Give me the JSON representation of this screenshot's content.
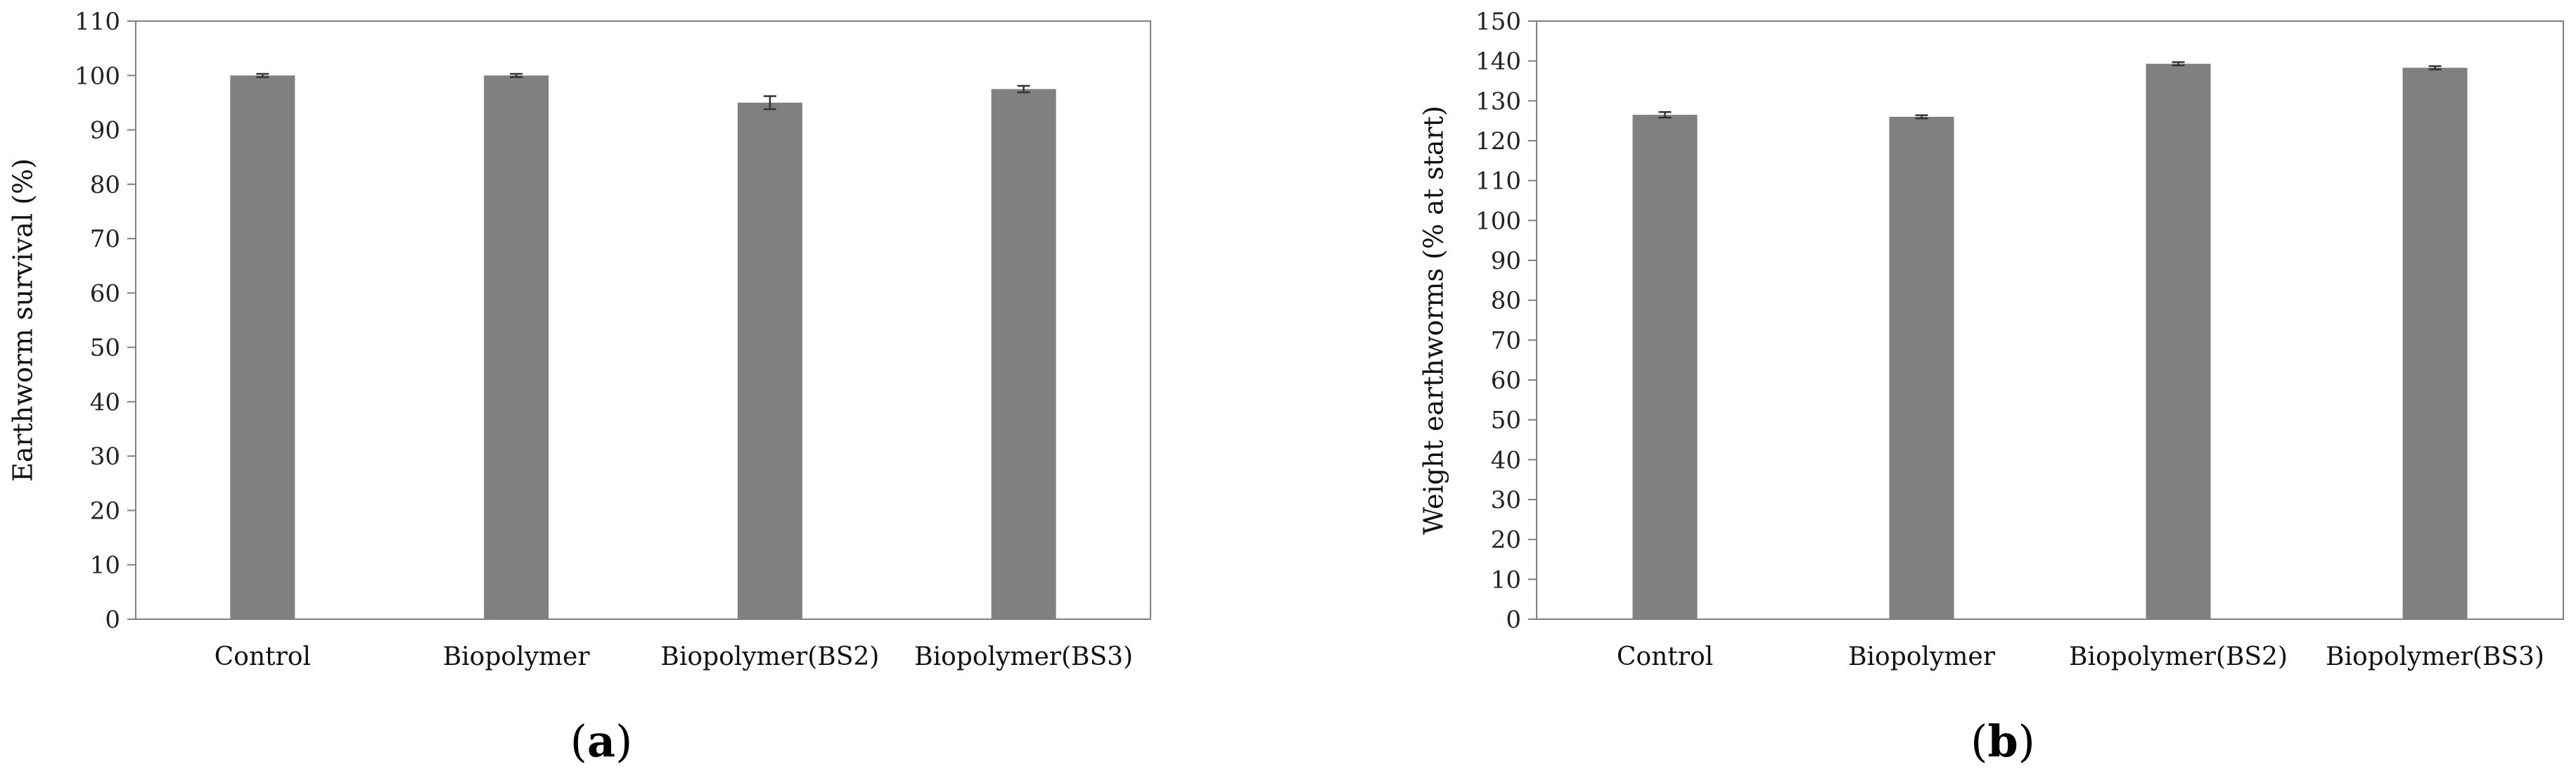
{
  "chart_data": [
    {
      "type": "bar",
      "panel_label": "a",
      "categories": [
        "Control",
        "Biopolymer",
        "Biopolymer(BS2)",
        "Biopolymer(BS3)"
      ],
      "values": [
        100,
        100,
        95,
        97.5
      ],
      "errors": [
        0.3,
        0.3,
        1.2,
        0.6
      ],
      "ylabel": "Earthworm survival (%)",
      "xlabel": "",
      "ylim": [
        0,
        110
      ],
      "ytick_step": 10,
      "color": "#808080",
      "grid": false
    },
    {
      "type": "bar",
      "panel_label": "b",
      "categories": [
        "Control",
        "Biopolymer",
        "Biopolymer(BS2)",
        "Biopolymer(BS3)"
      ],
      "values": [
        126.5,
        126,
        139.3,
        138.3
      ],
      "errors": [
        0.7,
        0.4,
        0.4,
        0.4
      ],
      "ylabel": "Weight earthworms (% at start)",
      "xlabel": "",
      "ylim": [
        0,
        150
      ],
      "ytick_step": 10,
      "color": "#808080",
      "grid": false
    }
  ]
}
